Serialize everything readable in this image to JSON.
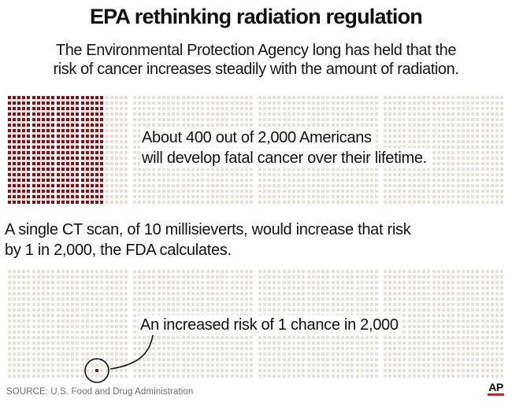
{
  "header": {
    "title": "EPA rethinking radiation regulation",
    "subtitle_line1": "The Environmental Protection Agency long has held that the",
    "subtitle_line2": "risk of cancer increases steadily with the amount of radiation."
  },
  "body": {
    "mid_line1": "A single CT scan, of 10 millisieverts, would increase that risk",
    "mid_line2": "by 1 in 2,000, the FDA calculates."
  },
  "chart_data": [
    {
      "type": "waffle",
      "total_units": 2000,
      "filled_units": 400,
      "rows": 20,
      "cols": 100,
      "blocks": 4,
      "groups_per_block": 5,
      "cols_per_group": 5,
      "fill_rule": "first_cols",
      "filled_cols": 20,
      "fill_color": "#6b1a20",
      "empty_color": "#e9e1d8",
      "filled_group_bg": "#f3dfdd",
      "annotation": {
        "line1": "About 400 out of 2,000 Americans",
        "line2": "will develop fatal cancer over their lifetime."
      }
    },
    {
      "type": "waffle",
      "total_units": 2000,
      "filled_units": 1,
      "rows": 20,
      "cols": 100,
      "blocks": 4,
      "groups_per_block": 5,
      "cols_per_group": 5,
      "fill_rule": "single_cell",
      "filled_col": 18,
      "filled_row": 18,
      "fill_color": "#6b1a20",
      "empty_color": "#e9e1d8",
      "annotation": {
        "line1": "An increased risk of 1 chance in 2,000"
      }
    }
  ],
  "footer": {
    "source": "SOURCE: U.S. Food and Drug Administration",
    "ap_logo": "AP",
    "ap_red": "#c9252c"
  }
}
